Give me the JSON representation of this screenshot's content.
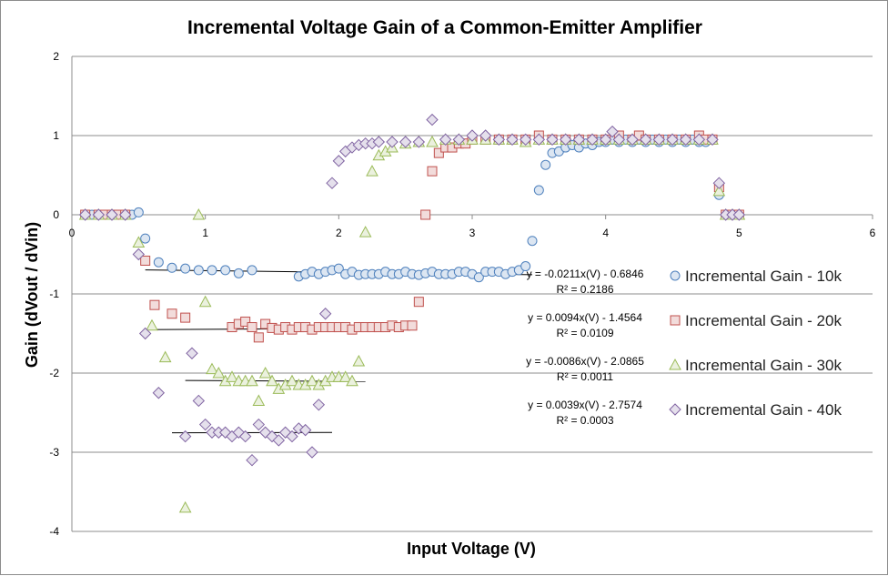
{
  "chart_data": {
    "type": "scatter",
    "title": "Incremental Voltage Gain of a Common-Emitter Amplifier",
    "xlabel": "Input Voltage (V)",
    "ylabel": "Gain (dVout / dVin)",
    "xlim": [
      0,
      6
    ],
    "ylim": [
      -4,
      2
    ],
    "x_ticks": [
      "0",
      "1",
      "2",
      "3",
      "4",
      "5",
      "6"
    ],
    "y_ticks": [
      "2",
      "1",
      "0",
      "-1",
      "-2",
      "-3",
      "-4"
    ],
    "grid": "horizontal",
    "legend_position": "right",
    "series": [
      {
        "name": "Incremental Gain - 10k",
        "marker": "circle",
        "fill": "#dce6f2",
        "stroke": "#4f81bd",
        "points": [
          [
            0.1,
            0
          ],
          [
            0.15,
            0
          ],
          [
            0.2,
            0
          ],
          [
            0.25,
            0
          ],
          [
            0.3,
            0
          ],
          [
            0.35,
            0
          ],
          [
            0.4,
            0
          ],
          [
            0.45,
            0
          ],
          [
            0.5,
            0.03
          ],
          [
            0.55,
            -0.3
          ],
          [
            0.65,
            -0.6
          ],
          [
            0.75,
            -0.67
          ],
          [
            0.85,
            -0.68
          ],
          [
            0.95,
            -0.7
          ],
          [
            1.05,
            -0.7
          ],
          [
            1.15,
            -0.7
          ],
          [
            1.25,
            -0.74
          ],
          [
            1.35,
            -0.7
          ],
          [
            1.7,
            -0.78
          ],
          [
            1.75,
            -0.75
          ],
          [
            1.8,
            -0.72
          ],
          [
            1.85,
            -0.75
          ],
          [
            1.9,
            -0.72
          ],
          [
            1.95,
            -0.7
          ],
          [
            2.0,
            -0.68
          ],
          [
            2.05,
            -0.75
          ],
          [
            2.1,
            -0.72
          ],
          [
            2.15,
            -0.76
          ],
          [
            2.2,
            -0.75
          ],
          [
            2.25,
            -0.75
          ],
          [
            2.3,
            -0.75
          ],
          [
            2.35,
            -0.72
          ],
          [
            2.4,
            -0.75
          ],
          [
            2.45,
            -0.75
          ],
          [
            2.5,
            -0.72
          ],
          [
            2.55,
            -0.75
          ],
          [
            2.6,
            -0.76
          ],
          [
            2.65,
            -0.74
          ],
          [
            2.7,
            -0.72
          ],
          [
            2.75,
            -0.75
          ],
          [
            2.8,
            -0.75
          ],
          [
            2.85,
            -0.75
          ],
          [
            2.9,
            -0.72
          ],
          [
            2.95,
            -0.72
          ],
          [
            3.0,
            -0.75
          ],
          [
            3.05,
            -0.79
          ],
          [
            3.1,
            -0.72
          ],
          [
            3.15,
            -0.72
          ],
          [
            3.2,
            -0.72
          ],
          [
            3.25,
            -0.75
          ],
          [
            3.3,
            -0.72
          ],
          [
            3.35,
            -0.7
          ],
          [
            3.4,
            -0.65
          ],
          [
            3.45,
            -0.33
          ],
          [
            3.5,
            0.31
          ],
          [
            3.55,
            0.63
          ],
          [
            3.6,
            0.78
          ],
          [
            3.65,
            0.8
          ],
          [
            3.7,
            0.85
          ],
          [
            3.75,
            0.88
          ],
          [
            3.8,
            0.85
          ],
          [
            3.85,
            0.9
          ],
          [
            3.9,
            0.88
          ],
          [
            3.95,
            0.92
          ],
          [
            4.0,
            0.92
          ],
          [
            4.05,
            0.95
          ],
          [
            4.1,
            0.92
          ],
          [
            4.15,
            0.95
          ],
          [
            4.2,
            0.92
          ],
          [
            4.25,
            0.95
          ],
          [
            4.3,
            0.92
          ],
          [
            4.35,
            0.95
          ],
          [
            4.4,
            0.92
          ],
          [
            4.45,
            0.95
          ],
          [
            4.5,
            0.92
          ],
          [
            4.55,
            0.95
          ],
          [
            4.6,
            0.92
          ],
          [
            4.65,
            0.95
          ],
          [
            4.7,
            0.92
          ],
          [
            4.75,
            0.92
          ],
          [
            4.8,
            0.95
          ],
          [
            4.85,
            0.25
          ],
          [
            4.9,
            0
          ],
          [
            4.95,
            0
          ],
          [
            5.0,
            0
          ]
        ]
      },
      {
        "name": "Incremental Gain - 20k",
        "marker": "square",
        "fill": "#f2dcdb",
        "stroke": "#c0504d",
        "points": [
          [
            0.1,
            0
          ],
          [
            0.2,
            0
          ],
          [
            0.25,
            0
          ],
          [
            0.3,
            0
          ],
          [
            0.35,
            0
          ],
          [
            0.4,
            0
          ],
          [
            0.55,
            -0.58
          ],
          [
            0.75,
            -1.25
          ],
          [
            0.85,
            -1.3
          ],
          [
            0.62,
            -1.14
          ],
          [
            1.2,
            -1.42
          ],
          [
            1.25,
            -1.38
          ],
          [
            1.3,
            -1.35
          ],
          [
            1.35,
            -1.42
          ],
          [
            1.4,
            -1.55
          ],
          [
            1.45,
            -1.38
          ],
          [
            1.5,
            -1.43
          ],
          [
            1.55,
            -1.45
          ],
          [
            1.6,
            -1.42
          ],
          [
            1.65,
            -1.45
          ],
          [
            1.7,
            -1.42
          ],
          [
            1.75,
            -1.42
          ],
          [
            1.8,
            -1.45
          ],
          [
            1.85,
            -1.42
          ],
          [
            1.9,
            -1.42
          ],
          [
            1.95,
            -1.42
          ],
          [
            2.0,
            -1.42
          ],
          [
            2.05,
            -1.42
          ],
          [
            2.1,
            -1.45
          ],
          [
            2.15,
            -1.42
          ],
          [
            2.2,
            -1.42
          ],
          [
            2.25,
            -1.42
          ],
          [
            2.3,
            -1.42
          ],
          [
            2.35,
            -1.42
          ],
          [
            2.4,
            -1.4
          ],
          [
            2.45,
            -1.42
          ],
          [
            2.5,
            -1.4
          ],
          [
            2.55,
            -1.4
          ],
          [
            2.6,
            -1.1
          ],
          [
            2.65,
            0
          ],
          [
            2.7,
            0.55
          ],
          [
            2.75,
            0.78
          ],
          [
            2.8,
            0.85
          ],
          [
            2.85,
            0.85
          ],
          [
            2.9,
            0.9
          ],
          [
            2.95,
            0.9
          ],
          [
            3.0,
            0.95
          ],
          [
            3.1,
            0.95
          ],
          [
            3.2,
            0.95
          ],
          [
            3.3,
            0.95
          ],
          [
            3.4,
            0.95
          ],
          [
            3.5,
            1.0
          ],
          [
            3.6,
            0.95
          ],
          [
            3.7,
            0.95
          ],
          [
            3.8,
            0.95
          ],
          [
            3.9,
            0.95
          ],
          [
            4.0,
            0.95
          ],
          [
            4.1,
            1.0
          ],
          [
            4.2,
            0.95
          ],
          [
            4.25,
            1.0
          ],
          [
            4.3,
            0.95
          ],
          [
            4.4,
            0.95
          ],
          [
            4.5,
            0.95
          ],
          [
            4.6,
            0.95
          ],
          [
            4.7,
            1.0
          ],
          [
            4.75,
            0.95
          ],
          [
            4.8,
            0.95
          ],
          [
            4.85,
            0.35
          ],
          [
            4.9,
            0
          ],
          [
            4.95,
            0
          ],
          [
            5.0,
            0
          ]
        ]
      },
      {
        "name": "Incremental Gain - 30k",
        "marker": "triangle",
        "fill": "#ebf1de",
        "stroke": "#9bbb59",
        "points": [
          [
            0.1,
            0
          ],
          [
            0.2,
            0
          ],
          [
            0.3,
            0
          ],
          [
            0.4,
            0
          ],
          [
            0.5,
            -0.35
          ],
          [
            0.6,
            -1.4
          ],
          [
            0.7,
            -1.8
          ],
          [
            0.85,
            -3.7
          ],
          [
            0.95,
            0
          ],
          [
            1.0,
            -1.1
          ],
          [
            1.05,
            -1.95
          ],
          [
            1.1,
            -2.0
          ],
          [
            1.15,
            -2.1
          ],
          [
            1.2,
            -2.05
          ],
          [
            1.25,
            -2.1
          ],
          [
            1.3,
            -2.1
          ],
          [
            1.35,
            -2.1
          ],
          [
            1.4,
            -2.35
          ],
          [
            1.45,
            -2.0
          ],
          [
            1.5,
            -2.1
          ],
          [
            1.55,
            -2.2
          ],
          [
            1.6,
            -2.15
          ],
          [
            1.65,
            -2.1
          ],
          [
            1.7,
            -2.15
          ],
          [
            1.75,
            -2.15
          ],
          [
            1.8,
            -2.1
          ],
          [
            1.85,
            -2.15
          ],
          [
            1.9,
            -2.1
          ],
          [
            1.95,
            -2.05
          ],
          [
            2.0,
            -2.05
          ],
          [
            2.05,
            -2.05
          ],
          [
            2.1,
            -2.1
          ],
          [
            2.15,
            -1.85
          ],
          [
            2.2,
            -0.22
          ],
          [
            2.25,
            0.55
          ],
          [
            2.3,
            0.75
          ],
          [
            2.35,
            0.8
          ],
          [
            2.4,
            0.85
          ],
          [
            2.5,
            0.9
          ],
          [
            2.6,
            0.92
          ],
          [
            2.7,
            0.92
          ],
          [
            2.8,
            0.95
          ],
          [
            2.9,
            0.95
          ],
          [
            3.0,
            0.95
          ],
          [
            3.1,
            0.95
          ],
          [
            3.2,
            0.95
          ],
          [
            3.3,
            0.95
          ],
          [
            3.4,
            0.92
          ],
          [
            3.5,
            0.95
          ],
          [
            3.6,
            0.95
          ],
          [
            3.7,
            0.95
          ],
          [
            3.8,
            0.95
          ],
          [
            3.9,
            0.95
          ],
          [
            4.0,
            0.95
          ],
          [
            4.1,
            0.95
          ],
          [
            4.2,
            0.95
          ],
          [
            4.3,
            0.95
          ],
          [
            4.4,
            0.95
          ],
          [
            4.5,
            0.95
          ],
          [
            4.6,
            0.95
          ],
          [
            4.7,
            0.95
          ],
          [
            4.8,
            0.95
          ],
          [
            4.85,
            0.3
          ],
          [
            4.9,
            0
          ],
          [
            4.95,
            0
          ],
          [
            5.0,
            0
          ]
        ]
      },
      {
        "name": "Incremental Gain - 40k",
        "marker": "diamond",
        "fill": "#e5e0ec",
        "stroke": "#8064a2",
        "points": [
          [
            0.1,
            0
          ],
          [
            0.2,
            0
          ],
          [
            0.3,
            0
          ],
          [
            0.4,
            0
          ],
          [
            0.5,
            -0.5
          ],
          [
            0.55,
            -1.5
          ],
          [
            0.65,
            -2.25
          ],
          [
            0.85,
            -2.8
          ],
          [
            0.9,
            -1.75
          ],
          [
            0.95,
            -2.35
          ],
          [
            1.0,
            -2.65
          ],
          [
            1.05,
            -2.75
          ],
          [
            1.1,
            -2.75
          ],
          [
            1.15,
            -2.75
          ],
          [
            1.2,
            -2.8
          ],
          [
            1.25,
            -2.75
          ],
          [
            1.3,
            -2.8
          ],
          [
            1.35,
            -3.1
          ],
          [
            1.4,
            -2.65
          ],
          [
            1.45,
            -2.75
          ],
          [
            1.5,
            -2.8
          ],
          [
            1.55,
            -2.85
          ],
          [
            1.6,
            -2.75
          ],
          [
            1.65,
            -2.8
          ],
          [
            1.7,
            -2.7
          ],
          [
            1.75,
            -2.72
          ],
          [
            1.8,
            -3.0
          ],
          [
            1.85,
            -2.4
          ],
          [
            1.9,
            -1.25
          ],
          [
            1.95,
            0.4
          ],
          [
            2.0,
            0.68
          ],
          [
            2.05,
            0.8
          ],
          [
            2.1,
            0.85
          ],
          [
            2.15,
            0.88
          ],
          [
            2.2,
            0.9
          ],
          [
            2.25,
            0.9
          ],
          [
            2.3,
            0.92
          ],
          [
            2.4,
            0.92
          ],
          [
            2.5,
            0.92
          ],
          [
            2.6,
            0.92
          ],
          [
            2.7,
            1.2
          ],
          [
            2.8,
            0.95
          ],
          [
            2.9,
            0.95
          ],
          [
            3.0,
            1.0
          ],
          [
            3.1,
            1.0
          ],
          [
            3.2,
            0.95
          ],
          [
            3.3,
            0.95
          ],
          [
            3.4,
            0.95
          ],
          [
            3.5,
            0.95
          ],
          [
            3.6,
            0.95
          ],
          [
            3.7,
            0.95
          ],
          [
            3.8,
            0.95
          ],
          [
            3.9,
            0.95
          ],
          [
            4.0,
            0.95
          ],
          [
            4.05,
            1.05
          ],
          [
            4.1,
            0.95
          ],
          [
            4.2,
            0.95
          ],
          [
            4.3,
            0.95
          ],
          [
            4.4,
            0.95
          ],
          [
            4.5,
            0.95
          ],
          [
            4.6,
            0.95
          ],
          [
            4.7,
            0.95
          ],
          [
            4.8,
            0.95
          ],
          [
            4.85,
            0.4
          ],
          [
            4.9,
            0
          ],
          [
            4.95,
            0
          ],
          [
            5.0,
            0
          ]
        ]
      }
    ],
    "trendlines": [
      {
        "x_range": [
          0.55,
          3.45
        ],
        "slope": -0.0211,
        "intercept": -0.6846,
        "equation": "y = -0.0211x(V) - 0.6846",
        "r2": "R² = 0.2186"
      },
      {
        "x_range": [
          0.55,
          2.55
        ],
        "slope": 0.0094,
        "intercept": -1.4564,
        "equation": "y = 0.0094x(V) - 1.4564",
        "r2": "R² = 0.0109"
      },
      {
        "x_range": [
          0.85,
          2.2
        ],
        "slope": -0.0086,
        "intercept": -2.0865,
        "equation": "y = -0.0086x(V) - 2.0865",
        "r2": "R² = 0.0011"
      },
      {
        "x_range": [
          0.75,
          1.95
        ],
        "slope": 0.0039,
        "intercept": -2.7574,
        "equation": "y = 0.0039x(V) - 2.7574",
        "r2": "R² = 0.0003"
      }
    ]
  }
}
